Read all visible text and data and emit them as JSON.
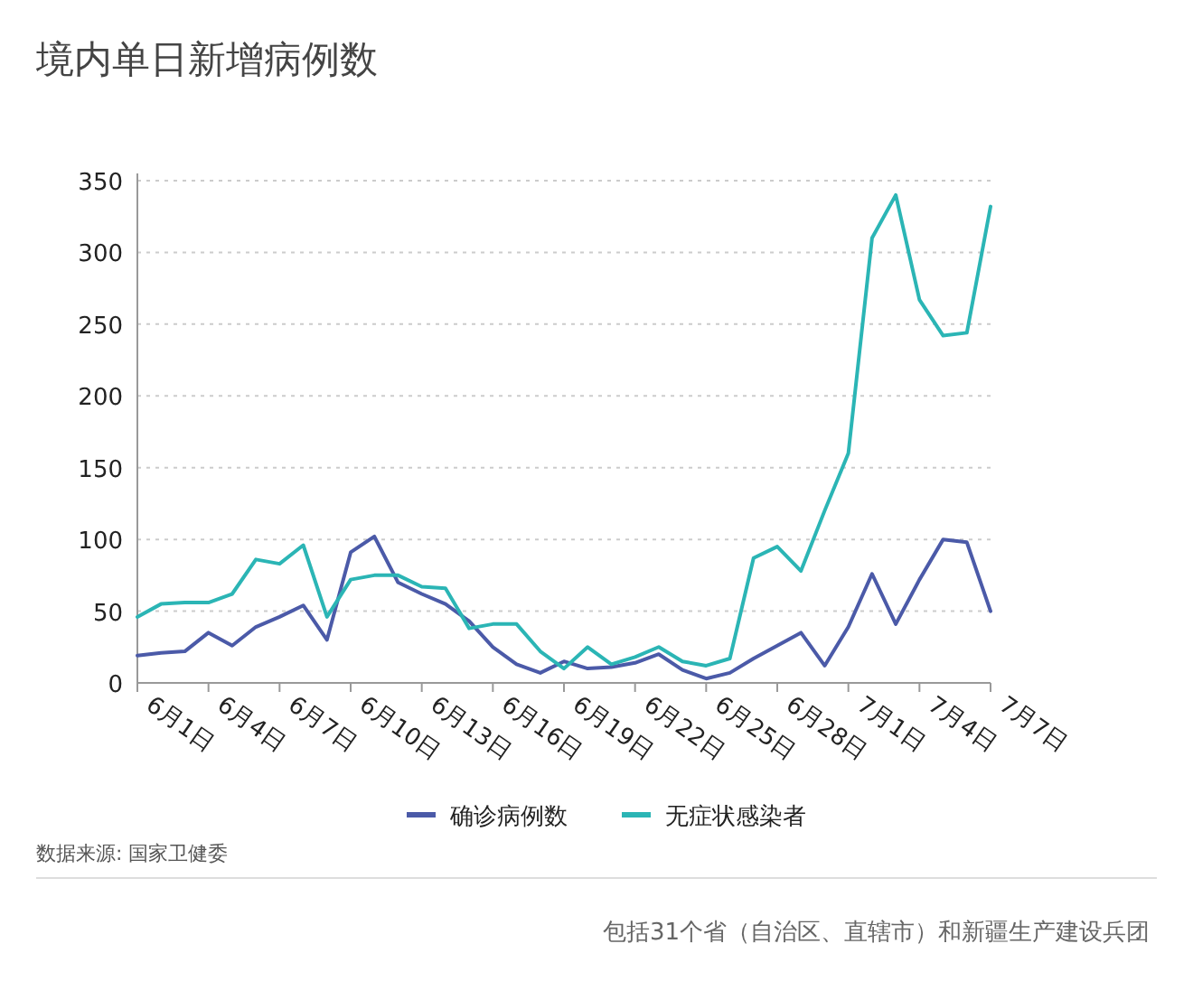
{
  "chart_data": {
    "type": "line",
    "title": "境内单日新增病例数",
    "x": [
      "--06-01",
      "--06-02",
      "--06-03",
      "--06-04",
      "--06-05",
      "--06-06",
      "--06-07",
      "--06-08",
      "--06-09",
      "--06-10",
      "--06-11",
      "--06-12",
      "--06-13",
      "--06-14",
      "--06-15",
      "--06-16",
      "--06-17",
      "--06-18",
      "--06-19",
      "--06-20",
      "--06-21",
      "--06-22",
      "--06-23",
      "--06-24",
      "--06-25",
      "--06-26",
      "--06-27",
      "--06-28",
      "--06-29",
      "--06-30",
      "--07-01",
      "--07-02",
      "--07-03",
      "--07-04",
      "--07-05",
      "--07-06",
      "--07-07"
    ],
    "series": [
      {
        "name": "确诊病例数",
        "color": "#4b5aa8",
        "values": [
          19,
          21,
          22,
          35,
          26,
          39,
          46,
          54,
          30,
          91,
          102,
          70,
          62,
          55,
          43,
          25,
          13,
          7,
          15,
          10,
          11,
          14,
          20,
          9,
          3,
          7,
          17,
          26,
          35,
          12,
          39,
          76,
          41,
          72,
          100,
          98,
          50
        ]
      },
      {
        "name": "无症状感染者",
        "color": "#2bb5b5",
        "values": [
          46,
          55,
          56,
          56,
          62,
          86,
          83,
          96,
          46,
          72,
          75,
          75,
          67,
          66,
          38,
          41,
          41,
          22,
          10,
          25,
          13,
          18,
          25,
          15,
          12,
          17,
          87,
          95,
          78,
          120,
          160,
          310,
          340,
          267,
          242,
          244,
          332
        ]
      }
    ],
    "xlim": [
      "--06-01",
      "--07-07"
    ],
    "xticks": [
      {
        "value": "--06-01",
        "label": "6月1日"
      },
      {
        "value": "--06-04",
        "label": "6月4日"
      },
      {
        "value": "--06-07",
        "label": "6月7日"
      },
      {
        "value": "--06-10",
        "label": "6月10日"
      },
      {
        "value": "--06-13",
        "label": "6月13日"
      },
      {
        "value": "--06-16",
        "label": "6月16日"
      },
      {
        "value": "--06-19",
        "label": "6月19日"
      },
      {
        "value": "--06-22",
        "label": "6月22日"
      },
      {
        "value": "--06-25",
        "label": "6月25日"
      },
      {
        "value": "--06-28",
        "label": "6月28日"
      },
      {
        "value": "--07-01",
        "label": "7月1日"
      },
      {
        "value": "--07-04",
        "label": "7月4日"
      },
      {
        "value": "--07-07",
        "label": "7月7日"
      }
    ],
    "ylim": [
      0,
      350
    ],
    "yticks": [
      0,
      50,
      100,
      150,
      200,
      250,
      300,
      350
    ],
    "grid": "y",
    "legend": "bottom",
    "marker": "none",
    "line_style": "solid",
    "annotations": [
      "数据来源: 国家卫健委",
      "包括31个省（自治区、直辖市）和新疆生产建设兵团"
    ]
  }
}
